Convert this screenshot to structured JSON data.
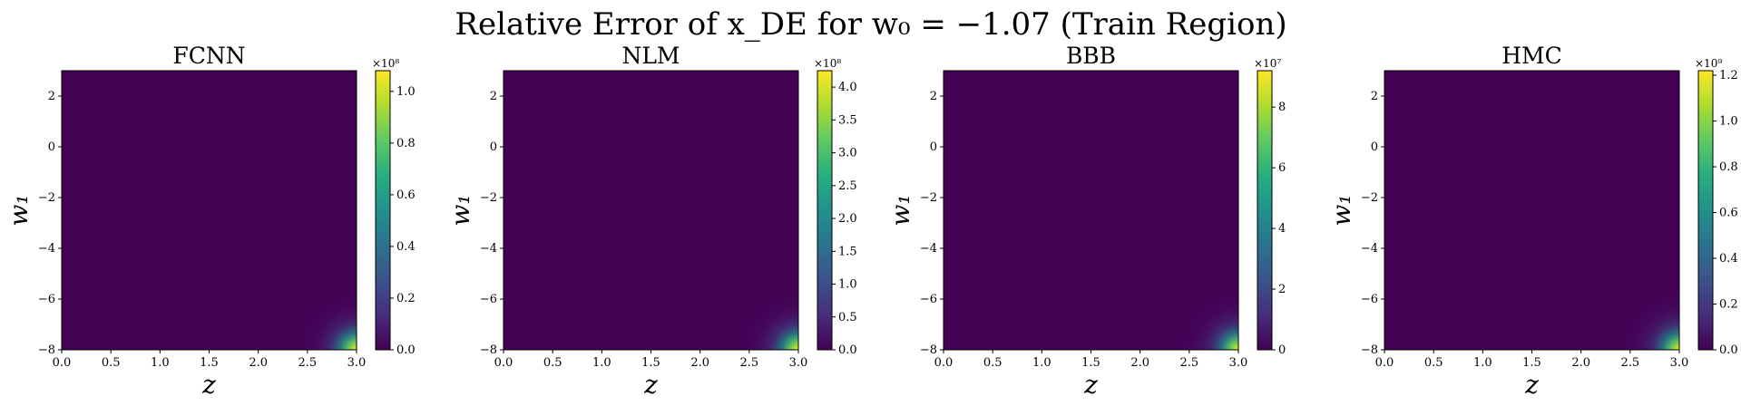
{
  "figure": {
    "title": "Relative Error of x_DE for w₀ = −1.07 (Train Region)",
    "colormap": "viridis",
    "background": "#440154"
  },
  "chart_data": [
    {
      "type": "heatmap",
      "title": "FCNN",
      "xlabel": "z",
      "ylabel": "w₁",
      "xlim": [
        0.0,
        3.0
      ],
      "ylim": [
        -8,
        3
      ],
      "xticks": [
        "0.0",
        "0.5",
        "1.0",
        "1.5",
        "2.0",
        "2.5",
        "3.0"
      ],
      "yticks": [
        "−8",
        "−6",
        "−4",
        "−2",
        "0",
        "2"
      ],
      "colorbar": {
        "exponent": "×10⁸",
        "range": [
          0,
          1.08
        ],
        "ticks": [
          "0.0",
          "0.2",
          "0.4",
          "0.6",
          "0.8",
          "1.0"
        ]
      },
      "hotspot": {
        "z": 3.0,
        "w1": -8,
        "value": 1.08
      }
    },
    {
      "type": "heatmap",
      "title": "NLM",
      "xlabel": "z",
      "ylabel": "w₁",
      "xlim": [
        0.0,
        3.0
      ],
      "ylim": [
        -8,
        3
      ],
      "xticks": [
        "0.0",
        "0.5",
        "1.0",
        "1.5",
        "2.0",
        "2.5",
        "3.0"
      ],
      "yticks": [
        "−8",
        "−6",
        "−4",
        "−2",
        "0",
        "2"
      ],
      "colorbar": {
        "exponent": "×10⁸",
        "range": [
          0,
          4.25
        ],
        "ticks": [
          "0.0",
          "0.5",
          "1.0",
          "1.5",
          "2.0",
          "2.5",
          "3.0",
          "3.5",
          "4.0"
        ]
      },
      "hotspot": {
        "z": 3.0,
        "w1": -8,
        "value": 4.25
      }
    },
    {
      "type": "heatmap",
      "title": "BBB",
      "xlabel": "z",
      "ylabel": "w₁",
      "xlim": [
        0.0,
        3.0
      ],
      "ylim": [
        -8,
        3
      ],
      "xticks": [
        "0.0",
        "0.5",
        "1.0",
        "1.5",
        "2.0",
        "2.5",
        "3.0"
      ],
      "yticks": [
        "−8",
        "−6",
        "−4",
        "−2",
        "0",
        "2"
      ],
      "colorbar": {
        "exponent": "×10⁷",
        "range": [
          0,
          9.2
        ],
        "ticks": [
          "0",
          "2",
          "4",
          "6",
          "8"
        ]
      },
      "hotspot": {
        "z": 3.0,
        "w1": -8,
        "value": 9.2
      }
    },
    {
      "type": "heatmap",
      "title": "HMC",
      "xlabel": "z",
      "ylabel": "w₁",
      "xlim": [
        0.0,
        3.0
      ],
      "ylim": [
        -8,
        3
      ],
      "xticks": [
        "0.0",
        "0.5",
        "1.0",
        "1.5",
        "2.0",
        "2.5",
        "3.0"
      ],
      "yticks": [
        "−8",
        "−6",
        "−4",
        "−2",
        "0",
        "2"
      ],
      "colorbar": {
        "exponent": "×10⁹",
        "range": [
          0,
          1.22
        ],
        "ticks": [
          "0.0",
          "0.2",
          "0.4",
          "0.6",
          "0.8",
          "1.0",
          "1.2"
        ]
      },
      "hotspot": {
        "z": 3.0,
        "w1": -8,
        "value": 1.22
      }
    }
  ]
}
